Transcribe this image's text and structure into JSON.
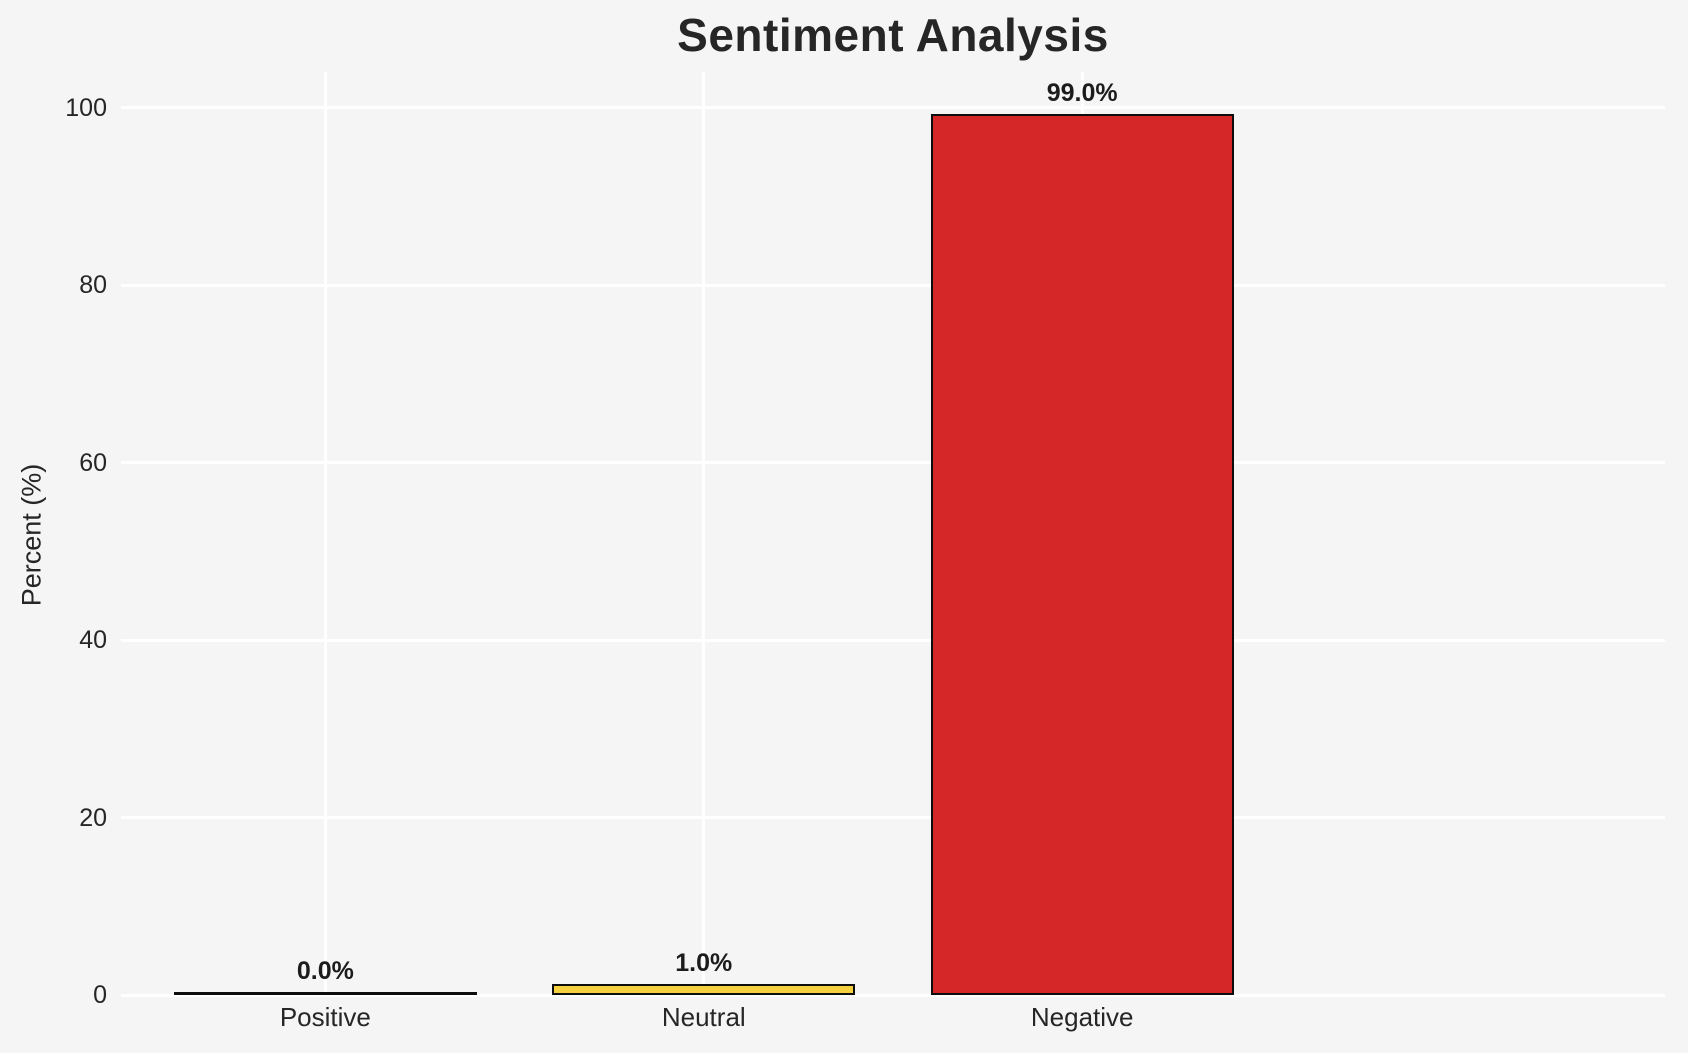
{
  "chart_data": {
    "type": "bar",
    "title": "Sentiment Analysis",
    "ylabel": "Percent (%)",
    "xlabel": "",
    "categories": [
      "Positive",
      "Neutral",
      "Negative"
    ],
    "values": [
      0.0,
      1.0,
      99.0
    ],
    "value_labels": [
      "0.0%",
      "1.0%",
      "99.0%"
    ],
    "yticks": [
      0,
      20,
      40,
      60,
      80,
      100
    ],
    "ytick_labels": [
      "0",
      "20",
      "40",
      "60",
      "80",
      "100"
    ],
    "ylim": [
      0,
      104
    ],
    "grid": true,
    "legend": false,
    "background_color": "#f5f5f5",
    "gridline_color": "#ffffff",
    "bar_colors": [
      null,
      "#f4d03f",
      "#d62728"
    ],
    "bar_edge_color": "#0d0d0d",
    "text_color": "#262626"
  }
}
